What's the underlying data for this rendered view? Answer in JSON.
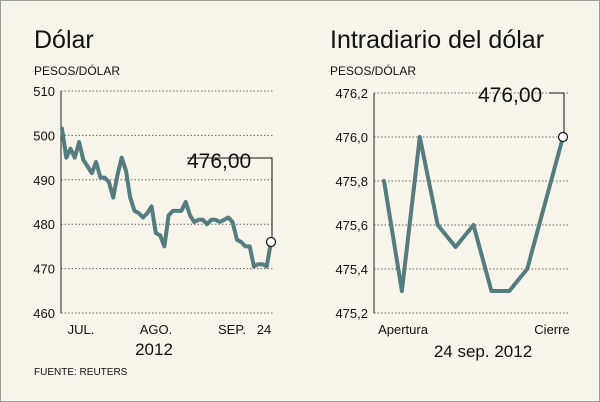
{
  "source": "FUENTE: REUTERS",
  "chart_data": [
    {
      "type": "line",
      "title": "Dólar",
      "ylabel": "PESOS/DÓLAR",
      "ylim": [
        460,
        510
      ],
      "yticks": [
        "510",
        "500",
        "490",
        "480",
        "470",
        "460"
      ],
      "xticks": [
        "JUL.",
        "AGO.",
        "SEP.",
        "24"
      ],
      "xsub": "2012",
      "series": [
        {
          "values": [
            501.5,
            495,
            497,
            495,
            498.5,
            494.5,
            493,
            491.5,
            494,
            490.5,
            490.5,
            489.5,
            486,
            491,
            495,
            492,
            486,
            483,
            482.5,
            481.5,
            482.5,
            484,
            478,
            477.5,
            475,
            482,
            483,
            483,
            483,
            485,
            482,
            480.5,
            481,
            481,
            480,
            481,
            481,
            480.5,
            481,
            481.5,
            480.5,
            476.5,
            476,
            475,
            475,
            470.5,
            471,
            471,
            470.5,
            476
          ]
        }
      ],
      "last_value_label": "476,00",
      "grid": true
    },
    {
      "type": "line",
      "title": "Intradiario del dólar",
      "ylabel": "PESOS/DÓLAR",
      "ylim": [
        475.2,
        476.2
      ],
      "yticks": [
        "476,2",
        "476,0",
        "475,8",
        "475,6",
        "475,4",
        "475,2"
      ],
      "xticks": [
        "Apertura",
        "Cierre"
      ],
      "xsub": "24 sep. 2012",
      "series": [
        {
          "values": [
            475.8,
            475.3,
            476.0,
            475.6,
            475.5,
            475.6,
            475.3,
            475.3,
            475.4,
            475.7,
            476.0
          ]
        }
      ],
      "last_value_label": "476,00",
      "grid": true
    }
  ]
}
